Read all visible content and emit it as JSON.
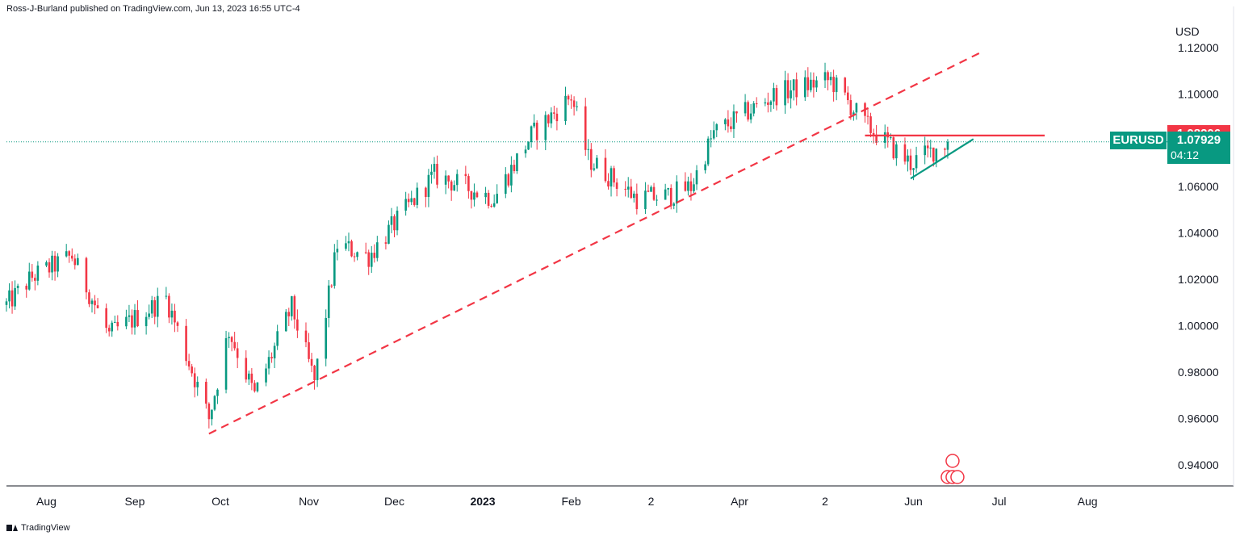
{
  "header": {
    "publisher": "Ross-J-Burland published on TradingView.com, Jun 13, 2023 16:55 UTC-4"
  },
  "footer": {
    "brand": "TradingView"
  },
  "colors": {
    "up": "#089981",
    "down": "#f23645",
    "trendline": "#f23645",
    "support": "#089981",
    "resistance": "#f23645"
  },
  "chart_data": {
    "type": "candlestick",
    "symbol": "EURUSD",
    "currency": "USD",
    "grid": false,
    "y_ticks": [
      "1.12000",
      "1.10000",
      "1.06000",
      "1.04000",
      "1.02000",
      "1.00000",
      "0.98000",
      "0.96000",
      "0.94000"
    ],
    "y_tick_values": [
      1.12,
      1.1,
      1.06,
      1.04,
      1.02,
      1.0,
      0.98,
      0.96,
      0.94
    ],
    "x_ticks": [
      "Aug",
      "Sep",
      "Oct",
      "Nov",
      "Dec",
      "2023",
      "Feb",
      "2",
      "Apr",
      "2",
      "Jun",
      "Jul",
      "Aug"
    ],
    "x_tick_dates": [
      "2022-08-01",
      "2022-09-01",
      "2022-10-01",
      "2022-11-01",
      "2022-12-01",
      "2023-01-01",
      "2023-02-01",
      "2023-03-01",
      "2023-04-01",
      "2023-05-01",
      "2023-06-01",
      "2023-07-01",
      "2023-08-01"
    ],
    "ylim": [
      0.931,
      1.1335
    ],
    "xlim": [
      "2022-07-18",
      "2023-08-29"
    ],
    "last_price": "1.07929",
    "countdown": "04:12",
    "resistance_price": "1.08206",
    "resistance_value": 1.08206,
    "trendlines": [
      {
        "name": "dashed uptrend",
        "style": "dashed",
        "color": "#f23645",
        "from": {
          "date": "2022-09-27",
          "price": 0.9535
        },
        "to": {
          "date": "2023-06-24",
          "price": 1.1175
        }
      },
      {
        "name": "support",
        "style": "solid",
        "color": "#089981",
        "from": {
          "date": "2023-05-31",
          "price": 1.0635
        },
        "to": {
          "date": "2023-06-22",
          "price": 1.0805
        }
      },
      {
        "name": "resistance",
        "style": "solid",
        "color": "#f23645",
        "from": {
          "date": "2023-05-15",
          "price": 1.08206
        },
        "to": {
          "date": "2023-07-17",
          "price": 1.08206
        }
      }
    ],
    "anchors": [
      {
        "date": "2022-07-18",
        "close": 1.009
      },
      {
        "date": "2022-07-27",
        "close": 1.021
      },
      {
        "date": "2022-08-10",
        "close": 1.03
      },
      {
        "date": "2022-08-23",
        "close": 0.996
      },
      {
        "date": "2022-09-12",
        "close": 1.012
      },
      {
        "date": "2022-09-27",
        "close": 0.96
      },
      {
        "date": "2022-10-04",
        "close": 0.998
      },
      {
        "date": "2022-10-13",
        "close": 0.97
      },
      {
        "date": "2022-10-26",
        "close": 1.008
      },
      {
        "date": "2022-11-03",
        "close": 0.976
      },
      {
        "date": "2022-11-11",
        "close": 1.035
      },
      {
        "date": "2022-11-22",
        "close": 1.03
      },
      {
        "date": "2022-12-05",
        "close": 1.05
      },
      {
        "date": "2022-12-15",
        "close": 1.065
      },
      {
        "date": "2023-01-05",
        "close": 1.055
      },
      {
        "date": "2023-01-18",
        "close": 1.082
      },
      {
        "date": "2023-02-01",
        "close": 1.099
      },
      {
        "date": "2023-02-07",
        "close": 1.072
      },
      {
        "date": "2023-02-24",
        "close": 1.055
      },
      {
        "date": "2023-03-07",
        "close": 1.056
      },
      {
        "date": "2023-03-15",
        "close": 1.06
      },
      {
        "date": "2023-03-23",
        "close": 1.083
      },
      {
        "date": "2023-04-14",
        "close": 1.1
      },
      {
        "date": "2023-04-26",
        "close": 1.104
      },
      {
        "date": "2023-05-03",
        "close": 1.106
      },
      {
        "date": "2023-05-15",
        "close": 1.087
      },
      {
        "date": "2023-05-31",
        "close": 1.07
      },
      {
        "date": "2023-06-13",
        "close": 1.07929
      }
    ]
  }
}
